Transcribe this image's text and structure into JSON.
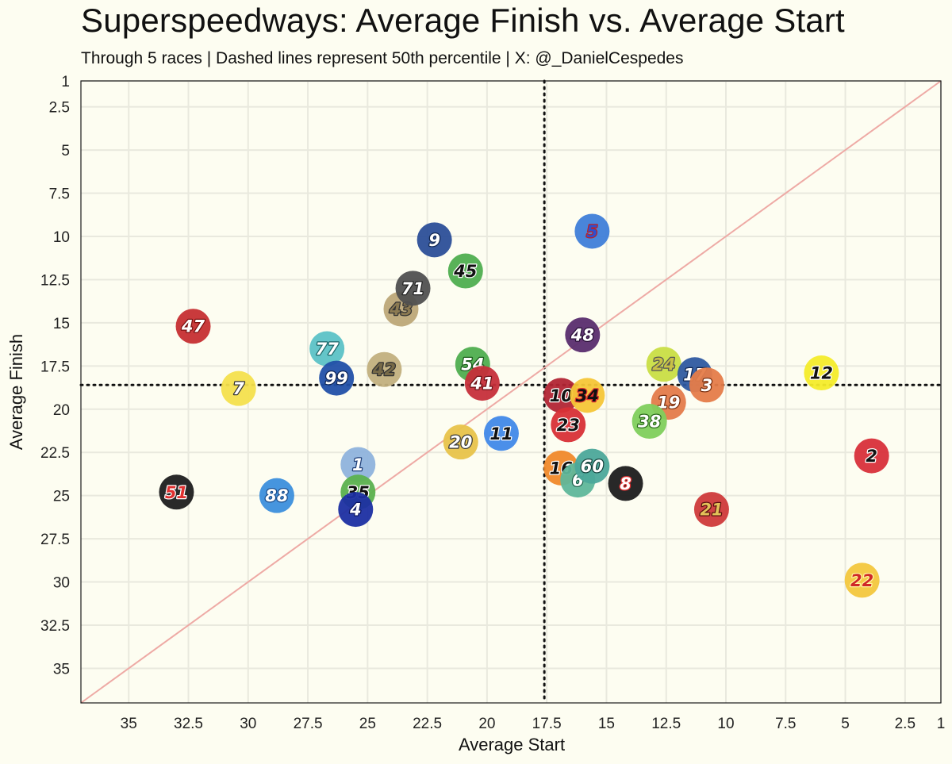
{
  "title": "Superspeedways: Average Finish vs. Average Start",
  "subtitle": "Through 5 races | Dashed lines represent 50th percentile | X: @_DanielCespedes",
  "chart_data": {
    "type": "scatter",
    "title": "Superspeedways: Average Finish vs. Average Start",
    "subtitle": "Through 5 races | Dashed lines represent 50th percentile | X: @_DanielCespedes",
    "xlabel": "Average Start",
    "ylabel": "Average Finish",
    "xlim": [
      37,
      1
    ],
    "ylim": [
      37,
      1
    ],
    "x_reversed": true,
    "y_reversed": true,
    "x_ticks": [
      35,
      32.5,
      30,
      27.5,
      25,
      22.5,
      20,
      17.5,
      15,
      12.5,
      10,
      7.5,
      5,
      2.5,
      1
    ],
    "y_ticks": [
      1,
      2.5,
      5,
      7.5,
      10,
      12.5,
      15,
      17.5,
      20,
      22.5,
      25,
      27.5,
      30,
      32.5,
      35
    ],
    "grid": true,
    "median_start": 17.6,
    "median_finish": 18.6,
    "diagonal": "y = x",
    "points": [
      {
        "car": "47",
        "start": 32.3,
        "finish": 15.2,
        "color": "#c62f32",
        "text": "#ffffff",
        "stroke": "#7a1010"
      },
      {
        "car": "7",
        "start": 30.4,
        "finish": 18.8,
        "color": "#f4e04d",
        "text": "#ffffff",
        "stroke": "#333333"
      },
      {
        "car": "51",
        "start": 33.0,
        "finish": 24.8,
        "color": "#1d1d1d",
        "text": "#e03030",
        "stroke": "#ffffff"
      },
      {
        "car": "88",
        "start": 28.8,
        "finish": 25.0,
        "color": "#3c8fdc",
        "text": "#ffffff",
        "stroke": "#1a4c8a"
      },
      {
        "car": "77",
        "start": 26.7,
        "finish": 16.5,
        "color": "#5cc2c6",
        "text": "#ffffff",
        "stroke": "#1d6668"
      },
      {
        "car": "99",
        "start": 26.3,
        "finish": 18.2,
        "color": "#2250a8",
        "text": "#ffffff",
        "stroke": "#0e2454"
      },
      {
        "car": "1",
        "start": 25.4,
        "finish": 23.2,
        "color": "#8fb3dc",
        "text": "#ffffff",
        "stroke": "#1f3f78"
      },
      {
        "car": "35",
        "start": 25.4,
        "finish": 24.8,
        "color": "#5bb14e",
        "text": "#111111",
        "stroke": "#ffffff"
      },
      {
        "car": "4",
        "start": 25.5,
        "finish": 25.8,
        "color": "#1c2fa2",
        "text": "#ffffff",
        "stroke": "#0b1560"
      },
      {
        "car": "42",
        "start": 24.3,
        "finish": 17.7,
        "color": "#c2b07e",
        "text": "#776a48",
        "stroke": "#333333"
      },
      {
        "car": "43",
        "start": 23.6,
        "finish": 14.2,
        "color": "#bda878",
        "text": "#8c7a52",
        "stroke": "#333333"
      },
      {
        "car": "71",
        "start": 23.1,
        "finish": 13.0,
        "color": "#505050",
        "text": "#ffffff",
        "stroke": "#222222"
      },
      {
        "car": "9",
        "start": 22.2,
        "finish": 10.2,
        "color": "#2c4f98",
        "text": "#ffffff",
        "stroke": "#0f2550"
      },
      {
        "car": "45",
        "start": 20.9,
        "finish": 12.0,
        "color": "#4fae4f",
        "text": "#111111",
        "stroke": "#ffffff"
      },
      {
        "car": "54",
        "start": 20.6,
        "finish": 17.4,
        "color": "#4fae4f",
        "text": "#ffffff",
        "stroke": "#1b5a1b"
      },
      {
        "car": "41",
        "start": 20.2,
        "finish": 18.5,
        "color": "#c62f3a",
        "text": "#ffffff",
        "stroke": "#6a1015"
      },
      {
        "car": "20",
        "start": 21.1,
        "finish": 21.9,
        "color": "#e8c34a",
        "text": "#ffffff",
        "stroke": "#333333"
      },
      {
        "car": "11",
        "start": 19.4,
        "finish": 21.4,
        "color": "#4189e8",
        "text": "#111111",
        "stroke": "#ffffff"
      },
      {
        "car": "5",
        "start": 15.6,
        "finish": 9.7,
        "color": "#3f7ed8",
        "text": "#2e4fd0",
        "stroke": "#c02020"
      },
      {
        "car": "48",
        "start": 16.0,
        "finish": 15.7,
        "color": "#5a2d6e",
        "text": "#ffffff",
        "stroke": "#2a0f38"
      },
      {
        "car": "10",
        "start": 16.9,
        "finish": 19.2,
        "color": "#b22534",
        "text": "#111111",
        "stroke": "#ffffff"
      },
      {
        "car": "34",
        "start": 15.8,
        "finish": 19.2,
        "color": "#f6c637",
        "text": "#111111",
        "stroke": "#e03030"
      },
      {
        "car": "23",
        "start": 16.6,
        "finish": 20.9,
        "color": "#d83036",
        "text": "#111111",
        "stroke": "#ffffff"
      },
      {
        "car": "16",
        "start": 16.9,
        "finish": 23.4,
        "color": "#f0892a",
        "text": "#111111",
        "stroke": "#ffffff"
      },
      {
        "car": "6",
        "start": 16.2,
        "finish": 24.1,
        "color": "#5fb79a",
        "text": "#ffffff",
        "stroke": "#1d5e4a"
      },
      {
        "car": "60",
        "start": 15.6,
        "finish": 23.3,
        "color": "#4ca89a",
        "text": "#ffffff",
        "stroke": "#123f3a"
      },
      {
        "car": "8",
        "start": 14.2,
        "finish": 24.3,
        "color": "#1c1c1c",
        "text": "#ffffff",
        "stroke": "#e03030"
      },
      {
        "car": "24",
        "start": 12.6,
        "finish": 17.4,
        "color": "#c9de44",
        "text": "#c8c046",
        "stroke": "#555555"
      },
      {
        "car": "17",
        "start": 11.3,
        "finish": 18.0,
        "color": "#2f5aa0",
        "text": "#ffffff",
        "stroke": "#0f2550"
      },
      {
        "car": "3",
        "start": 10.8,
        "finish": 18.6,
        "color": "#e57c49",
        "text": "#ffffff",
        "stroke": "#7a3010"
      },
      {
        "car": "19",
        "start": 12.4,
        "finish": 19.6,
        "color": "#e47b4a",
        "text": "#ffffff",
        "stroke": "#7a3010"
      },
      {
        "car": "38",
        "start": 13.2,
        "finish": 20.7,
        "color": "#7fcf5c",
        "text": "#ffffff",
        "stroke": "#2a6a1a"
      },
      {
        "car": "12",
        "start": 6.0,
        "finish": 17.9,
        "color": "#f4ec2a",
        "text": "#111111",
        "stroke": "#ffffff"
      },
      {
        "car": "2",
        "start": 3.9,
        "finish": 22.7,
        "color": "#d8303a",
        "text": "#111111",
        "stroke": "#ffffff"
      },
      {
        "car": "21",
        "start": 10.6,
        "finish": 25.8,
        "color": "#cf3a3a",
        "text": "#e3c259",
        "stroke": "#5a1010"
      },
      {
        "car": "22",
        "start": 4.3,
        "finish": 29.9,
        "color": "#f3c73d",
        "text": "#d02828",
        "stroke": "#fff4a0"
      }
    ]
  }
}
